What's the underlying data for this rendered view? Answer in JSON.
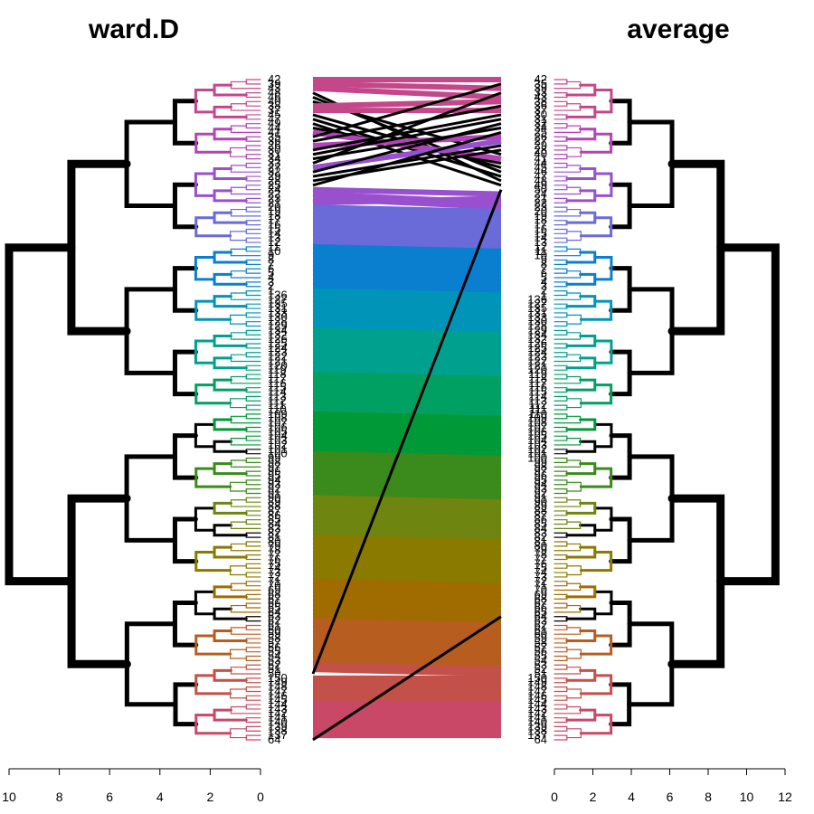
{
  "titles": {
    "left": "ward.D",
    "right": "average"
  },
  "left_axis": {
    "min": 0,
    "max": 10,
    "direction": "reversed",
    "ticks": [
      "10",
      "8",
      "6",
      "4",
      "2",
      "0"
    ]
  },
  "right_axis": {
    "min": 0,
    "max": 12,
    "ticks": [
      "0",
      "2",
      "4",
      "6",
      "8",
      "10",
      "12"
    ]
  },
  "left_leaves": [
    "42",
    "39",
    "43",
    "48",
    "46",
    "40",
    "38",
    "37",
    "45",
    "47",
    "49",
    "44",
    "41",
    "35",
    "36",
    "26",
    "30",
    "31",
    "34",
    "33",
    "27",
    "32",
    "29",
    "28",
    "25",
    "24",
    "22",
    "23",
    "21",
    "20",
    "19",
    "18",
    "17",
    "16",
    "15",
    "14",
    "13",
    "12",
    "11",
    "10",
    "9",
    "8",
    "7",
    "6",
    "5",
    "4",
    "3",
    "2",
    "1",
    "136",
    "127",
    "135",
    "131",
    "133",
    "130",
    "128",
    "129",
    "134",
    "132",
    "126",
    "125",
    "124",
    "123",
    "122",
    "121",
    "120",
    "119",
    "118",
    "117",
    "116",
    "115",
    "114",
    "113",
    "112",
    "111",
    "110",
    "109",
    "108",
    "107",
    "106",
    "105",
    "104",
    "103",
    "102",
    "101",
    "100",
    "99",
    "98",
    "97",
    "96",
    "95",
    "94",
    "93",
    "92",
    "91",
    "90",
    "89",
    "88",
    "87",
    "86",
    "85",
    "84",
    "83",
    "82",
    "81",
    "80",
    "79",
    "78",
    "77",
    "76",
    "75",
    "74",
    "73",
    "72",
    "71",
    "70",
    "69",
    "68",
    "67",
    "66",
    "65",
    "64",
    "63",
    "62",
    "61",
    "60",
    "59",
    "58",
    "57",
    "56",
    "55",
    "54",
    "53",
    "52",
    "51",
    "50",
    "150",
    "149",
    "148",
    "147",
    "146",
    "145",
    "144",
    "143",
    "142",
    "141",
    "140",
    "139",
    "138",
    "137",
    "64"
  ],
  "right_leaves": [
    "42",
    "35",
    "39",
    "33",
    "43",
    "38",
    "36",
    "37",
    "30",
    "31",
    "32",
    "34",
    "25",
    "26",
    "27",
    "29",
    "28",
    "40",
    "41",
    "44",
    "45",
    "46",
    "47",
    "48",
    "49",
    "50",
    "24",
    "21",
    "22",
    "23",
    "20",
    "19",
    "18",
    "17",
    "16",
    "15",
    "14",
    "13",
    "12",
    "11",
    "10",
    "9",
    "8",
    "7",
    "6",
    "5",
    "4",
    "3",
    "2",
    "1",
    "136",
    "127",
    "135",
    "131",
    "133",
    "130",
    "128",
    "129",
    "134",
    "132",
    "126",
    "125",
    "124",
    "123",
    "122",
    "121",
    "120",
    "119",
    "118",
    "117",
    "116",
    "115",
    "114",
    "113",
    "112",
    "111",
    "110",
    "109",
    "108",
    "107",
    "106",
    "105",
    "104",
    "103",
    "102",
    "101",
    "100",
    "99",
    "98",
    "97",
    "96",
    "95",
    "94",
    "93",
    "92",
    "91",
    "90",
    "89",
    "88",
    "87",
    "86",
    "85",
    "84",
    "83",
    "82",
    "81",
    "80",
    "79",
    "78",
    "77",
    "76",
    "75",
    "74",
    "73",
    "72",
    "71",
    "70",
    "69",
    "68",
    "67",
    "66",
    "65",
    "64",
    "63",
    "62",
    "61",
    "60",
    "59",
    "58",
    "57",
    "56",
    "55",
    "54",
    "53",
    "52",
    "51",
    "150",
    "149",
    "148",
    "147",
    "146",
    "145",
    "144",
    "143",
    "142",
    "141",
    "140",
    "139",
    "138",
    "137",
    "64"
  ],
  "clusters": [
    {
      "color": "#c4478a"
    },
    {
      "color": "#b344b6"
    },
    {
      "color": "#9950cf"
    },
    {
      "color": "#6a6ad8"
    },
    {
      "color": "#0a7fd0"
    },
    {
      "color": "#0095b8"
    },
    {
      "color": "#00a08f"
    },
    {
      "color": "#00a062"
    },
    {
      "color": "#009938"
    },
    {
      "color": "#3a8a1c"
    },
    {
      "color": "#6e8510"
    },
    {
      "color": "#8a7a00"
    },
    {
      "color": "#a06c00"
    },
    {
      "color": "#b85d20"
    },
    {
      "color": "#c4504a"
    },
    {
      "color": "#c94868"
    }
  ]
}
